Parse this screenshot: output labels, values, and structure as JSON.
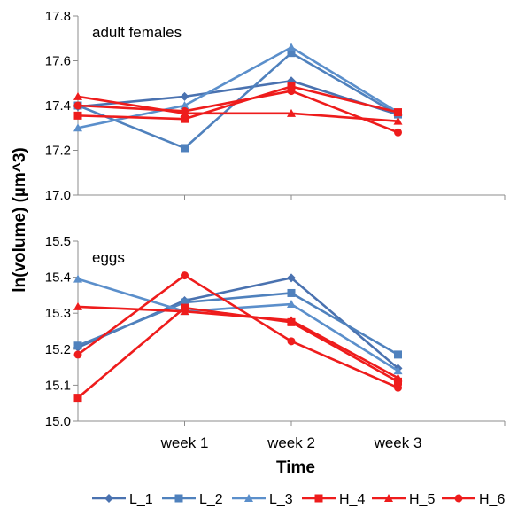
{
  "figure": {
    "ylabel": "ln(volume) (µm^3)",
    "xlabel": "Time",
    "categories": [
      "",
      "week 1",
      "week 2",
      "week 3"
    ]
  },
  "legend": {
    "items": [
      {
        "name": "L_1",
        "color": "#4a72b0",
        "marker": "diamond"
      },
      {
        "name": "L_2",
        "color": "#4f81bd",
        "marker": "square"
      },
      {
        "name": "L_3",
        "color": "#5b8fcb",
        "marker": "triangle"
      },
      {
        "name": "H_4",
        "color": "#ee1c1c",
        "marker": "square"
      },
      {
        "name": "H_5",
        "color": "#ee1c1c",
        "marker": "triangle"
      },
      {
        "name": "H_6",
        "color": "#ee1c1c",
        "marker": "circle"
      }
    ]
  },
  "chart_data": [
    {
      "type": "line",
      "title": "adult females",
      "categories": [
        "",
        "week 1",
        "week 2",
        "week 3"
      ],
      "ylim": [
        17.0,
        17.8
      ],
      "yticks": [
        "17.0",
        "17.2",
        "17.4",
        "17.6",
        "17.8"
      ],
      "series": [
        {
          "name": "L_1",
          "values": [
            17.395,
            17.44,
            17.51,
            17.36
          ]
        },
        {
          "name": "L_2",
          "values": [
            17.4,
            17.21,
            17.635,
            17.36
          ]
        },
        {
          "name": "L_3",
          "values": [
            17.3,
            17.4,
            17.66,
            17.37
          ]
        },
        {
          "name": "H_4",
          "values": [
            17.355,
            17.34,
            17.485,
            17.37
          ]
        },
        {
          "name": "H_5",
          "values": [
            17.44,
            17.365,
            17.365,
            17.33
          ]
        },
        {
          "name": "H_6",
          "values": [
            17.4,
            17.375,
            17.465,
            17.28
          ]
        }
      ]
    },
    {
      "type": "line",
      "title": "eggs",
      "categories": [
        "",
        "week 1",
        "week 2",
        "week 3"
      ],
      "ylim": [
        15.0,
        15.5
      ],
      "yticks": [
        "15.0",
        "15.1",
        "15.2",
        "15.3",
        "15.4",
        "15.5"
      ],
      "series": [
        {
          "name": "L_1",
          "values": [
            15.205,
            15.335,
            15.398,
            15.147
          ]
        },
        {
          "name": "L_2",
          "values": [
            15.21,
            15.33,
            15.356,
            15.185
          ]
        },
        {
          "name": "L_3",
          "values": [
            15.395,
            15.305,
            15.325,
            15.14
          ]
        },
        {
          "name": "H_4",
          "values": [
            15.065,
            15.315,
            15.275,
            15.11
          ]
        },
        {
          "name": "H_5",
          "values": [
            15.318,
            15.305,
            15.28,
            15.12
          ]
        },
        {
          "name": "H_6",
          "values": [
            15.185,
            15.405,
            15.222,
            15.093
          ]
        }
      ]
    }
  ]
}
